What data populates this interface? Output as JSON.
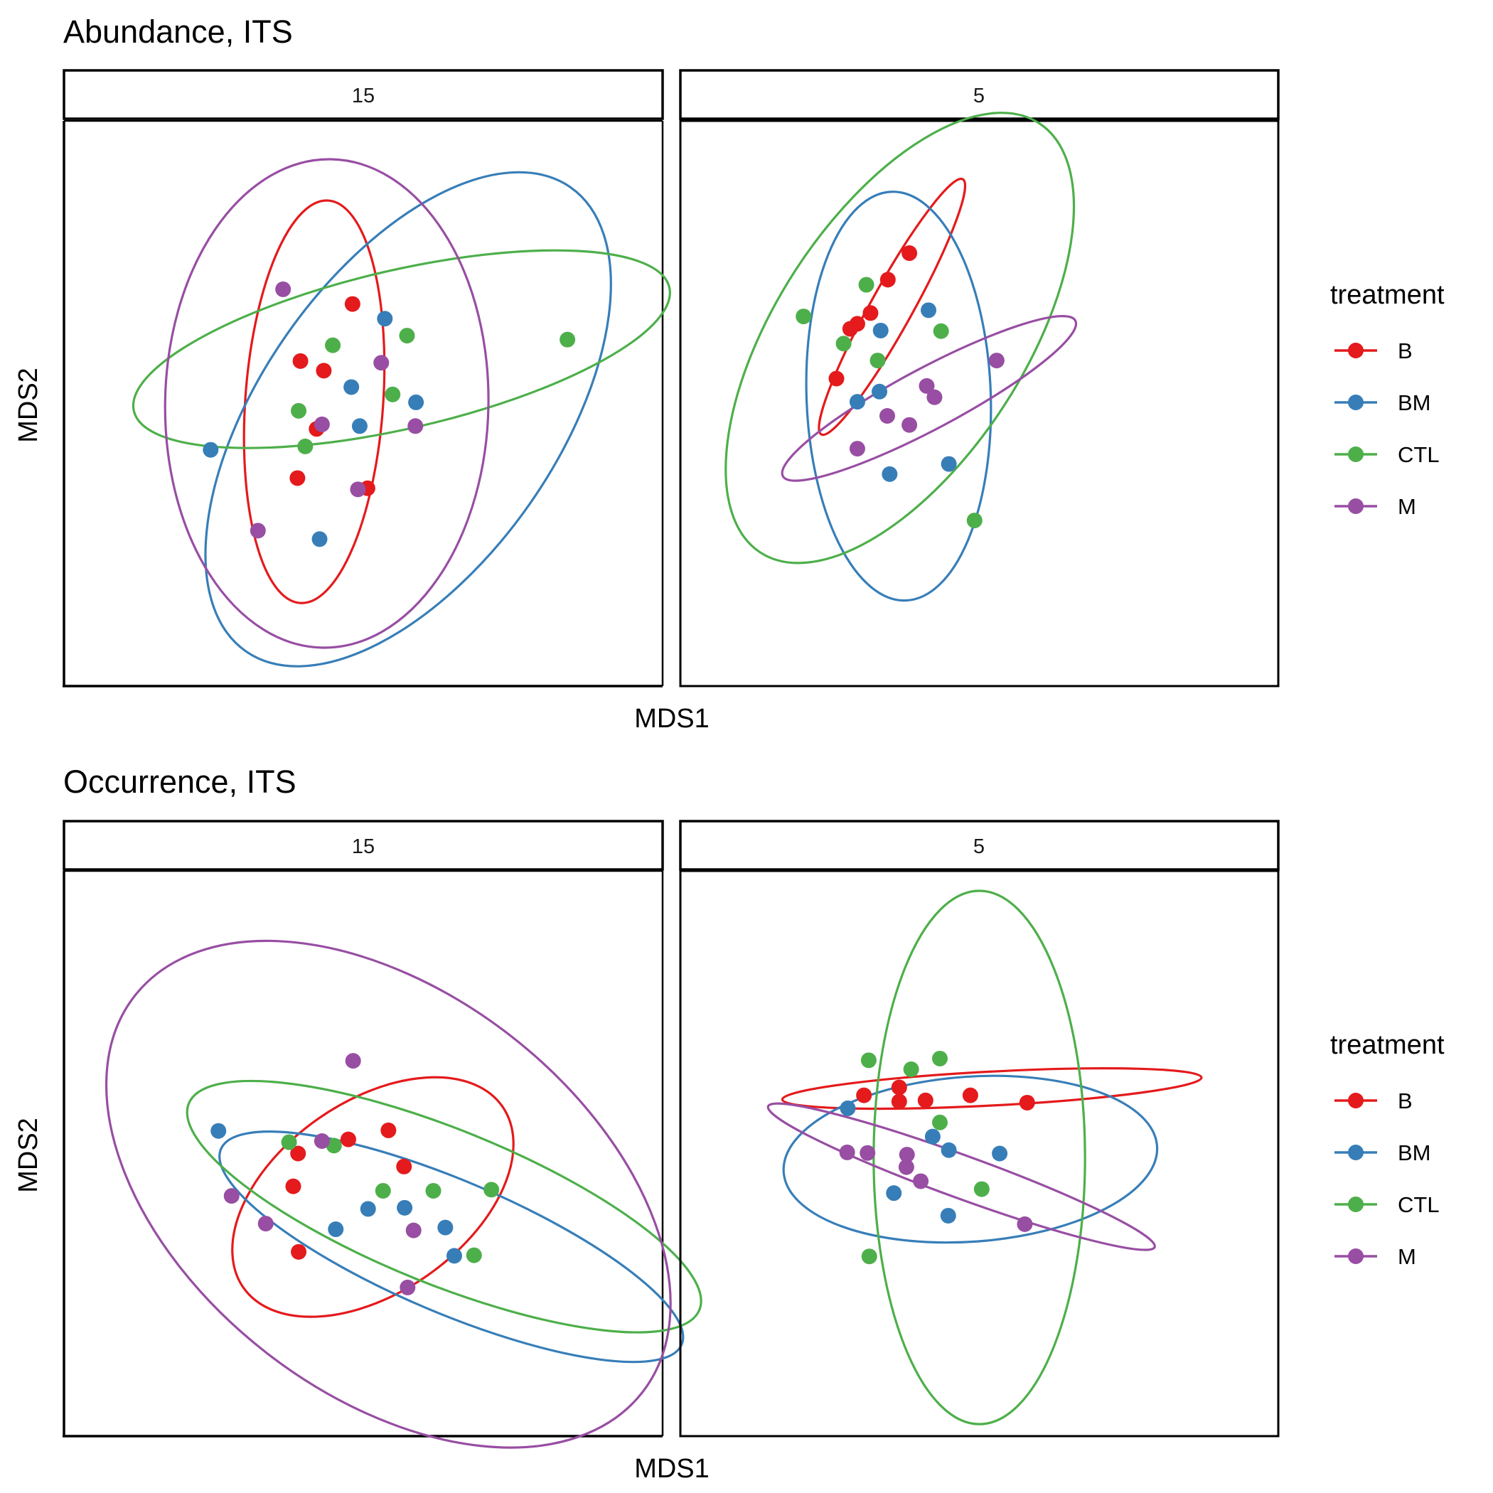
{
  "chart_data": [
    {
      "type": "scatter",
      "title": "Abundance, ITS",
      "xlabel": "MDS1",
      "ylabel": "MDS2",
      "xlim": [
        0,
        1
      ],
      "ylim": [
        0,
        1
      ],
      "legend": {
        "title": "treatment",
        "position": "right",
        "entries": [
          {
            "name": "B",
            "color": "#E41A1C"
          },
          {
            "name": "BM",
            "color": "#377EB8"
          },
          {
            "name": "CTL",
            "color": "#4DAF4A"
          },
          {
            "name": "M",
            "color": "#984EA3"
          }
        ]
      },
      "facets": [
        {
          "label": "15",
          "series": [
            {
              "name": "B",
              "points": [
                [
                  0.482,
                  0.676
                ],
                [
                  0.395,
                  0.575
                ],
                [
                  0.434,
                  0.558
                ],
                [
                  0.422,
                  0.455
                ],
                [
                  0.39,
                  0.368
                ],
                [
                  0.507,
                  0.35
                ]
              ],
              "ellipse": {
                "cx": 0.418,
                "cy": 0.503,
                "rx": 0.337,
                "ry": 0.122,
                "angle": 86
              }
            },
            {
              "name": "BM",
              "points": [
                [
                  0.536,
                  0.65
                ],
                [
                  0.48,
                  0.529
                ],
                [
                  0.588,
                  0.502
                ],
                [
                  0.494,
                  0.46
                ],
                [
                  0.245,
                  0.418
                ],
                [
                  0.427,
                  0.26
                ]
              ],
              "ellipse": {
                "cx": 0.575,
                "cy": 0.472,
                "rx": 0.473,
                "ry": 0.262,
                "angle": 55
              }
            },
            {
              "name": "CTL",
              "points": [
                [
                  0.573,
                  0.62
                ],
                [
                  0.841,
                  0.613
                ],
                [
                  0.449,
                  0.603
                ],
                [
                  0.549,
                  0.516
                ],
                [
                  0.392,
                  0.487
                ],
                [
                  0.403,
                  0.424
                ]
              ],
              "ellipse": {
                "cx": 0.564,
                "cy": 0.596,
                "rx": 0.459,
                "ry": 0.14,
                "angle": 13
              }
            },
            {
              "name": "M",
              "points": [
                [
                  0.366,
                  0.702
                ],
                [
                  0.53,
                  0.572
                ],
                [
                  0.431,
                  0.463
                ],
                [
                  0.587,
                  0.46
                ],
                [
                  0.491,
                  0.348
                ],
                [
                  0.324,
                  0.275
                ]
              ],
              "ellipse": {
                "cx": 0.439,
                "cy": 0.5,
                "rx": 0.408,
                "ry": 0.286,
                "angle": 89
              }
            }
          ]
        },
        {
          "label": "5",
          "series": [
            {
              "name": "B",
              "points": [
                [
                  0.383,
                  0.766
                ],
                [
                  0.347,
                  0.719
                ],
                [
                  0.318,
                  0.66
                ],
                [
                  0.296,
                  0.641
                ],
                [
                  0.284,
                  0.632
                ],
                [
                  0.261,
                  0.544
                ]
              ],
              "ellipse": {
                "cx": 0.354,
                "cy": 0.671,
                "rx": 0.244,
                "ry": 0.037,
                "angle": 61
              }
            },
            {
              "name": "BM",
              "points": [
                [
                  0.415,
                  0.665
                ],
                [
                  0.335,
                  0.629
                ],
                [
                  0.333,
                  0.521
                ],
                [
                  0.296,
                  0.503
                ],
                [
                  0.449,
                  0.393
                ],
                [
                  0.35,
                  0.375
                ]
              ],
              "ellipse": {
                "cx": 0.365,
                "cy": 0.513,
                "rx": 0.342,
                "ry": 0.163,
                "angle": 92
              }
            },
            {
              "name": "CTL",
              "points": [
                [
                  0.311,
                  0.71
                ],
                [
                  0.206,
                  0.654
                ],
                [
                  0.436,
                  0.628
                ],
                [
                  0.273,
                  0.606
                ],
                [
                  0.33,
                  0.576
                ],
                [
                  0.492,
                  0.293
                ]
              ],
              "ellipse": {
                "cx": 0.367,
                "cy": 0.616,
                "rx": 0.428,
                "ry": 0.22,
                "angle": 57
              }
            },
            {
              "name": "M",
              "points": [
                [
                  0.529,
                  0.576
                ],
                [
                  0.412,
                  0.531
                ],
                [
                  0.425,
                  0.511
                ],
                [
                  0.346,
                  0.478
                ],
                [
                  0.383,
                  0.462
                ],
                [
                  0.296,
                  0.42
                ]
              ],
              "ellipse": {
                "cx": 0.416,
                "cy": 0.509,
                "rx": 0.277,
                "ry": 0.054,
                "angle": 28
              }
            }
          ]
        }
      ]
    },
    {
      "type": "scatter",
      "title": "Occurrence, ITS",
      "xlabel": "MDS1",
      "ylabel": "MDS2",
      "xlim": [
        0,
        1
      ],
      "ylim": [
        0,
        1
      ],
      "legend": {
        "title": "treatment",
        "position": "right",
        "entries": [
          {
            "name": "B",
            "color": "#E41A1C"
          },
          {
            "name": "BM",
            "color": "#377EB8"
          },
          {
            "name": "CTL",
            "color": "#4DAF4A"
          },
          {
            "name": "M",
            "color": "#984EA3"
          }
        ]
      },
      "facets": [
        {
          "label": "15",
          "series": [
            {
              "name": "B",
              "points": [
                [
                  0.542,
                  0.541
                ],
                [
                  0.475,
                  0.525
                ],
                [
                  0.391,
                  0.5
                ],
                [
                  0.568,
                  0.477
                ],
                [
                  0.383,
                  0.442
                ],
                [
                  0.392,
                  0.326
                ]
              ],
              "ellipse": {
                "cx": 0.516,
                "cy": 0.423,
                "rx": 0.264,
                "ry": 0.169,
                "angle": 35
              }
            },
            {
              "name": "BM",
              "points": [
                [
                  0.258,
                  0.54
                ],
                [
                  0.569,
                  0.404
                ],
                [
                  0.508,
                  0.402
                ],
                [
                  0.637,
                  0.369
                ],
                [
                  0.454,
                  0.366
                ],
                [
                  0.652,
                  0.319
                ]
              ],
              "ellipse": {
                "cx": 0.647,
                "cy": 0.335,
                "rx": 0.418,
                "ry": 0.117,
                "angle": -23
              }
            },
            {
              "name": "CTL",
              "points": [
                [
                  0.376,
                  0.52
                ],
                [
                  0.451,
                  0.514
                ],
                [
                  0.617,
                  0.434
                ],
                [
                  0.533,
                  0.434
                ],
                [
                  0.714,
                  0.436
                ],
                [
                  0.685,
                  0.32
                ]
              ],
              "ellipse": {
                "cx": 0.635,
                "cy": 0.406,
                "rx": 0.46,
                "ry": 0.137,
                "angle": -22
              }
            },
            {
              "name": "M",
              "points": [
                [
                  0.483,
                  0.664
                ],
                [
                  0.28,
                  0.425
                ],
                [
                  0.431,
                  0.522
                ],
                [
                  0.337,
                  0.376
                ],
                [
                  0.584,
                  0.364
                ],
                [
                  0.574,
                  0.263
                ]
              ],
              "ellipse": {
                "cx": 0.542,
                "cy": 0.428,
                "rx": 0.538,
                "ry": 0.354,
                "angle": -38
              }
            }
          ]
        },
        {
          "label": "5",
          "series": [
            {
              "name": "B",
              "points": [
                [
                  0.366,
                  0.617
                ],
                [
                  0.307,
                  0.603
                ],
                [
                  0.485,
                  0.603
                ],
                [
                  0.41,
                  0.594
                ],
                [
                  0.366,
                  0.592
                ],
                [
                  0.58,
                  0.59
                ]
              ],
              "ellipse": {
                "cx": 0.521,
                "cy": 0.615,
                "rx": 0.351,
                "ry": 0.03,
                "angle": 3
              }
            },
            {
              "name": "BM",
              "points": [
                [
                  0.28,
                  0.58
                ],
                [
                  0.422,
                  0.53
                ],
                [
                  0.449,
                  0.506
                ],
                [
                  0.534,
                  0.5
                ],
                [
                  0.357,
                  0.43
                ],
                [
                  0.448,
                  0.39
                ]
              ],
              "ellipse": {
                "cx": 0.485,
                "cy": 0.49,
                "rx": 0.313,
                "ry": 0.146,
                "angle": 4
              }
            },
            {
              "name": "CTL",
              "points": [
                [
                  0.315,
                  0.665
                ],
                [
                  0.434,
                  0.668
                ],
                [
                  0.386,
                  0.649
                ],
                [
                  0.434,
                  0.555
                ],
                [
                  0.504,
                  0.437
                ],
                [
                  0.316,
                  0.318
                ]
              ],
              "ellipse": {
                "cx": 0.5,
                "cy": 0.493,
                "rx": 0.446,
                "ry": 0.187,
                "angle": 90
              }
            },
            {
              "name": "M",
              "points": [
                [
                  0.279,
                  0.502
                ],
                [
                  0.313,
                  0.501
                ],
                [
                  0.379,
                  0.498
                ],
                [
                  0.378,
                  0.476
                ],
                [
                  0.402,
                  0.451
                ],
                [
                  0.576,
                  0.375
                ]
              ],
              "ellipse": {
                "cx": 0.47,
                "cy": 0.459,
                "rx": 0.344,
                "ry": 0.038,
                "angle": -20
              }
            }
          ]
        }
      ]
    }
  ]
}
